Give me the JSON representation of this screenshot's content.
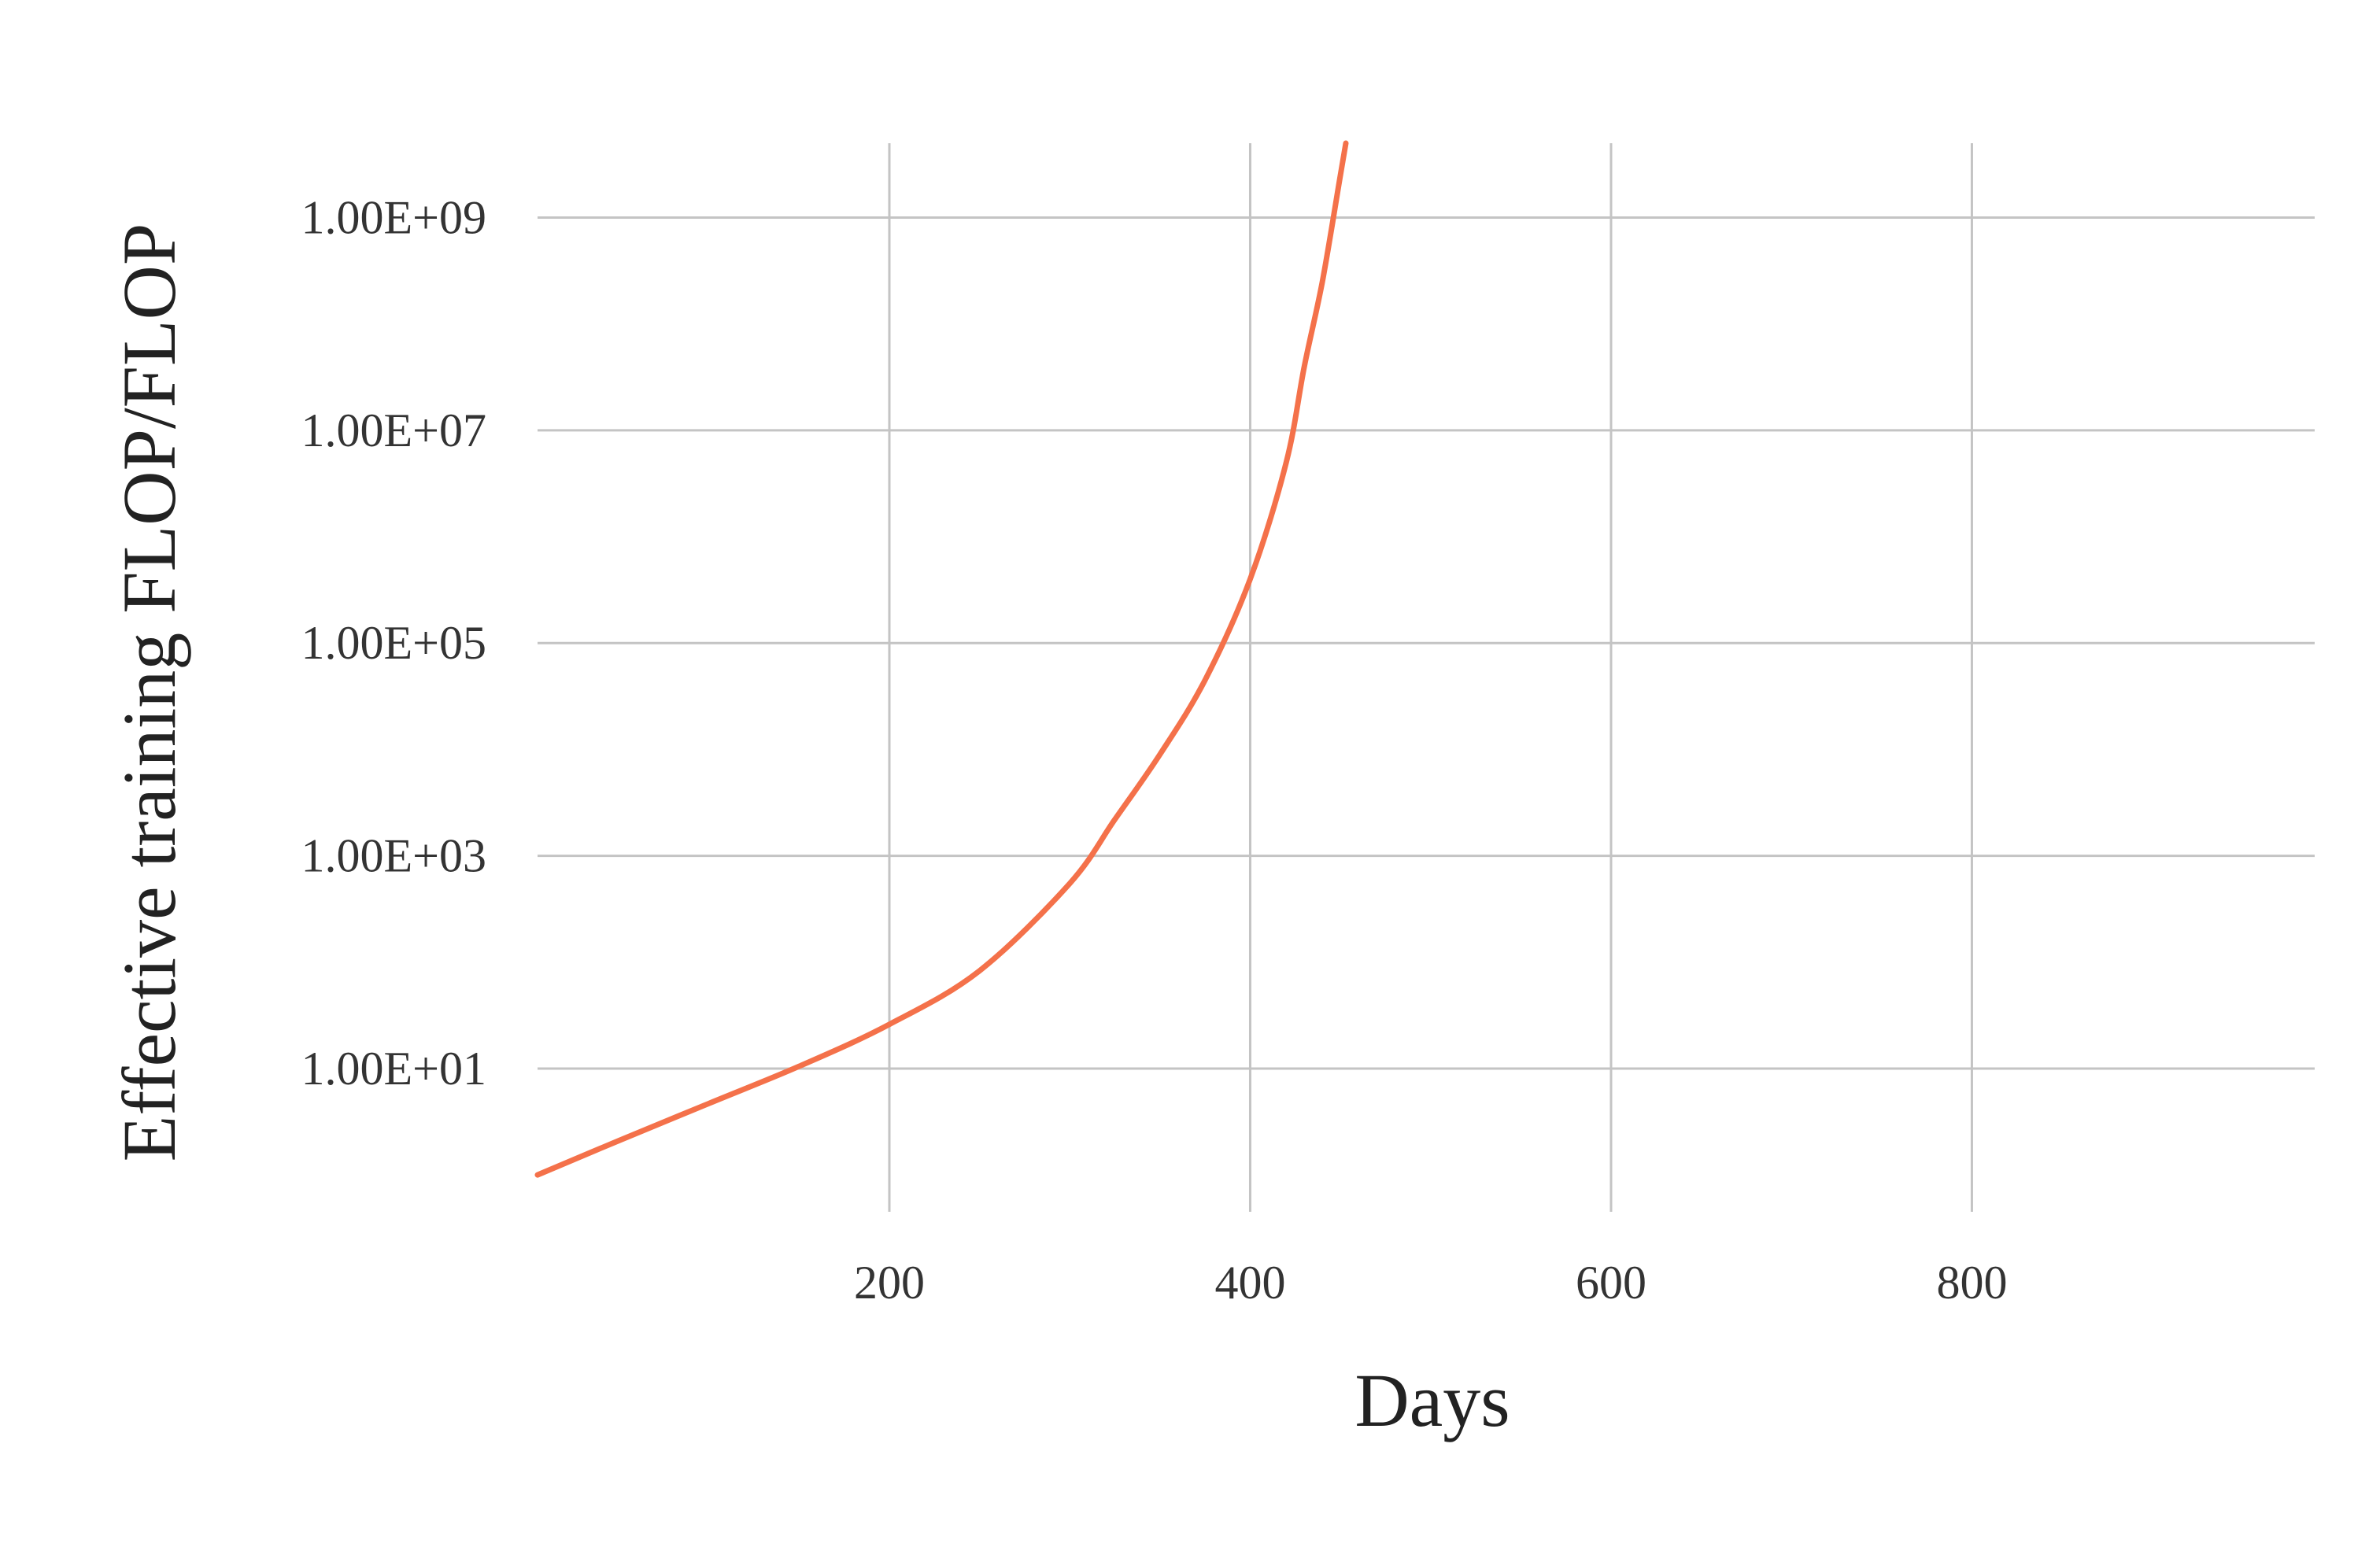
{
  "chart_data": {
    "type": "line",
    "title": "",
    "xlabel": "Days",
    "ylabel": "Effective training FLOP/FLOP",
    "x_ticks": [
      200,
      400,
      600,
      800
    ],
    "y_ticks": [
      {
        "value": 10,
        "label": "1.00E+01"
      },
      {
        "value": 1000,
        "label": "1.00E+03"
      },
      {
        "value": 100000,
        "label": "1.00E+05"
      },
      {
        "value": 10000000,
        "label": "1.00E+07"
      },
      {
        "value": 1000000000,
        "label": "1.00E+09"
      }
    ],
    "xlim": [
      5,
      990
    ],
    "ylim": [
      0.45,
      5000000000
    ],
    "y_scale": "log",
    "grid": true,
    "colors": {
      "series": "#f4714a",
      "grid": "#c4c4c4",
      "text": "#333333"
    },
    "series": [
      {
        "name": "",
        "x": [
          5,
          50,
          100,
          150,
          200,
          250,
          300,
          325,
          350,
          375,
          400,
          420,
          430,
          440,
          450,
          453
        ],
        "y": [
          1,
          2.1,
          4.7,
          10.5,
          26,
          83,
          550,
          2200,
          9000,
          45000,
          400000,
          5000000,
          40000000,
          250000000,
          2500000000,
          5000000000
        ]
      }
    ]
  }
}
